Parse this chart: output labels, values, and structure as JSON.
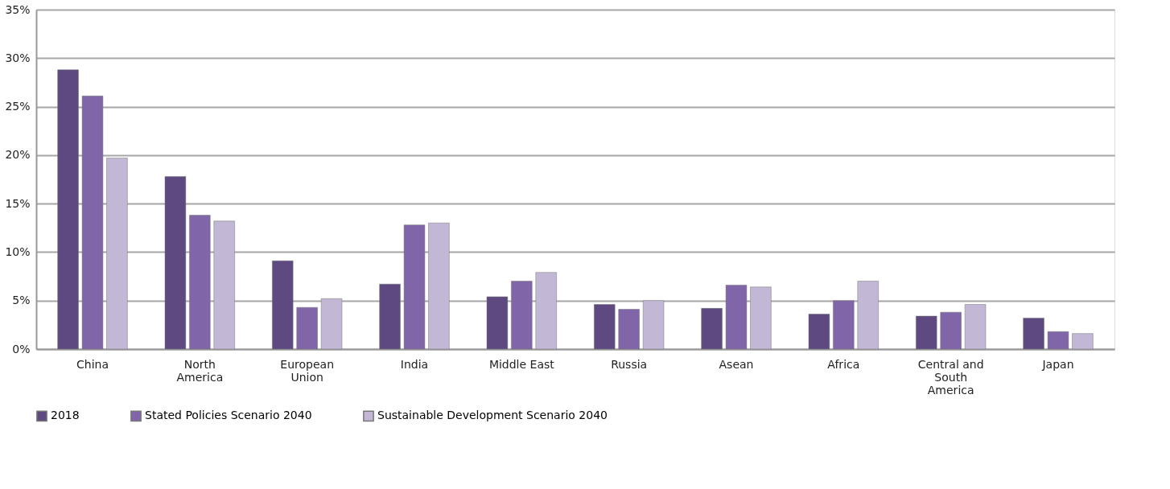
{
  "chart_data": {
    "type": "bar",
    "categories": [
      "China",
      "North America",
      "European Union",
      "India",
      "Middle East",
      "Russia",
      "Asean",
      "Africa",
      "Central and South America",
      "Japan"
    ],
    "series": [
      {
        "name": "2018",
        "color": "#5e4a80",
        "values": [
          28.8,
          17.8,
          9.1,
          6.7,
          5.4,
          4.6,
          4.2,
          3.6,
          3.4,
          3.2
        ]
      },
      {
        "name": "Stated Policies Scenario 2040",
        "color": "#8066a8",
        "values": [
          26.1,
          13.8,
          4.3,
          12.8,
          7.0,
          4.1,
          6.6,
          5.0,
          3.8,
          1.8
        ]
      },
      {
        "name": "Sustainable Development Scenario 2040",
        "color": "#c2b8d6",
        "values": [
          19.7,
          13.2,
          5.2,
          13.0,
          7.9,
          5.0,
          6.4,
          7.0,
          4.6,
          1.6
        ]
      }
    ],
    "ylim": [
      0,
      35
    ],
    "yticks": [
      {
        "value": 0,
        "label": "0%"
      },
      {
        "value": 5,
        "label": "5%"
      },
      {
        "value": 10,
        "label": "10%"
      },
      {
        "value": 15,
        "label": "15%"
      },
      {
        "value": 20,
        "label": "20%"
      },
      {
        "value": 25,
        "label": "25%"
      },
      {
        "value": 30,
        "label": "30%"
      },
      {
        "value": 35,
        "label": "35%"
      }
    ],
    "grid": "y",
    "legend": "bottom"
  }
}
